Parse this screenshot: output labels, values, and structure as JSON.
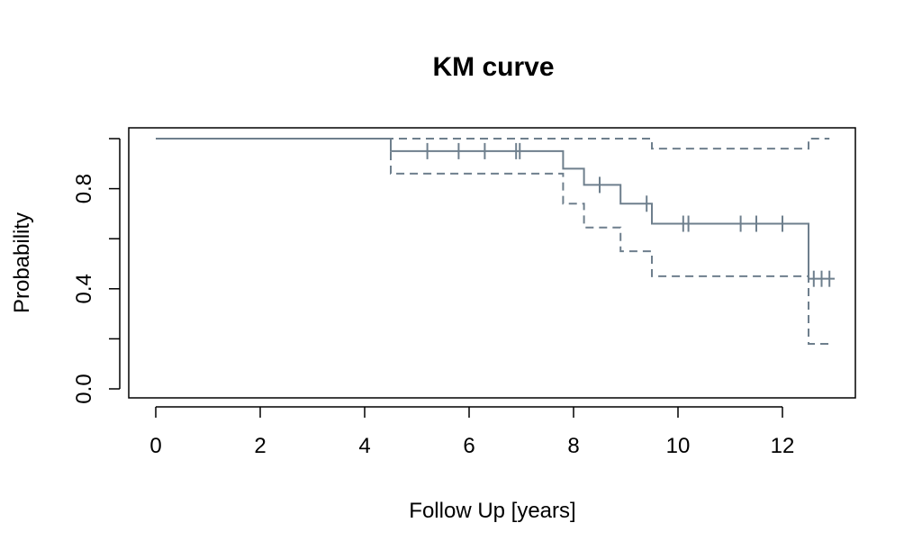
{
  "chart_data": {
    "type": "line",
    "title": "KM curve",
    "xlabel": "Follow Up [years]",
    "ylabel": "Probability",
    "xlim": [
      0,
      13
    ],
    "ylim": [
      0,
      1
    ],
    "x_ticks": [
      0,
      2,
      4,
      6,
      8,
      10,
      12
    ],
    "y_ticks": [
      0.0,
      0.2,
      0.4,
      0.6,
      0.8,
      1.0
    ],
    "y_tick_labels": [
      "0.0",
      "",
      "0.4",
      "",
      "0.8",
      ""
    ],
    "grid": false,
    "legend": "none",
    "line_color": "#6e7f8d",
    "series": [
      {
        "style": "solid",
        "steps": [
          {
            "x": 0,
            "y": 1.0
          },
          {
            "x": 4.5,
            "y": 0.95
          },
          {
            "x": 7.8,
            "y": 0.88
          },
          {
            "x": 8.2,
            "y": 0.815
          },
          {
            "x": 8.9,
            "y": 0.74
          },
          {
            "x": 9.5,
            "y": 0.66
          },
          {
            "x": 12.5,
            "y": 0.44
          },
          {
            "x": 13.0,
            "y": 0.44
          }
        ],
        "censor_times": [
          5.2,
          5.8,
          6.3,
          6.9,
          6.97,
          8.5,
          9.4,
          10.1,
          10.2,
          11.2,
          11.5,
          12.0,
          12.6,
          12.75,
          12.9
        ]
      },
      {
        "style": "dashed",
        "steps": [
          {
            "x": 0,
            "y": 1.0
          },
          {
            "x": 9.5,
            "y": 0.96
          },
          {
            "x": 12.5,
            "y": 1.0
          },
          {
            "x": 12.9,
            "y": 1.0
          }
        ]
      },
      {
        "style": "dashed",
        "steps": [
          {
            "x": 4.5,
            "y": 1.0
          },
          {
            "x": 4.5,
            "y": 0.86
          },
          {
            "x": 7.8,
            "y": 0.74
          },
          {
            "x": 8.2,
            "y": 0.645
          },
          {
            "x": 8.9,
            "y": 0.55
          },
          {
            "x": 9.5,
            "y": 0.45
          },
          {
            "x": 12.5,
            "y": 0.18
          },
          {
            "x": 12.9,
            "y": 0.18
          }
        ]
      }
    ]
  }
}
